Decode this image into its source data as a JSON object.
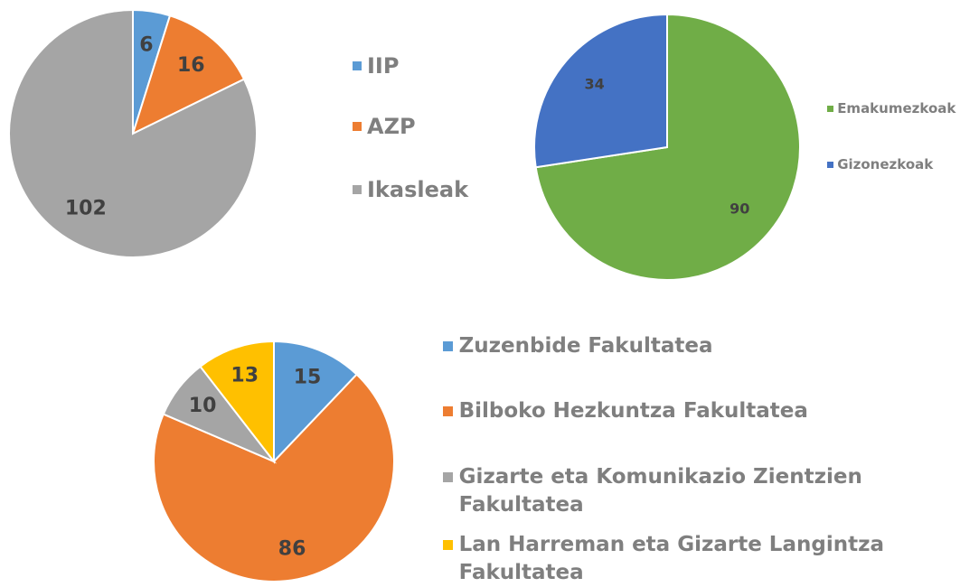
{
  "chart_data": [
    {
      "type": "pie",
      "categories": [
        "IIP",
        "AZP",
        "Ikasleak"
      ],
      "values": [
        6,
        16,
        102
      ],
      "colors": [
        "#5b9bd5",
        "#ed7d31",
        "#a5a5a5"
      ],
      "legend": "right"
    },
    {
      "type": "pie",
      "categories": [
        "Emakumezkoak",
        "Gizonezkoak"
      ],
      "values": [
        90,
        34
      ],
      "colors": [
        "#70ad47",
        "#4472c4"
      ],
      "legend": "right"
    },
    {
      "type": "pie",
      "categories": [
        "Zuzenbide Fakultatea",
        "Bilboko Hezkuntza Fakultatea",
        "Gizarte eta Komunikazio Zientzien Fakultatea",
        "Lan Harreman eta Gizarte Langintza Fakultatea"
      ],
      "values": [
        15,
        86,
        10,
        13
      ],
      "colors": [
        "#5b9bd5",
        "#ed7d31",
        "#a5a5a5",
        "#ffc000"
      ],
      "legend": "right"
    }
  ]
}
